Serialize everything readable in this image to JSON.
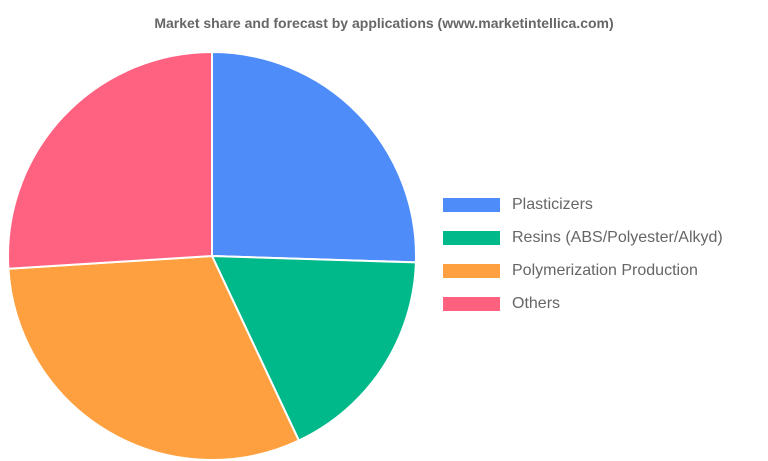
{
  "chart_data": {
    "type": "pie",
    "title": "Market share and forecast by applications (www.marketintellica.com)",
    "legend_position": "right",
    "categories": [
      "Plasticizers",
      "Resins (ABS/Polyester/Alkyd)",
      "Polymerization Production",
      "Others"
    ],
    "values": [
      25.5,
      17.5,
      31.0,
      26.0
    ],
    "colors": [
      "#4d8cf9",
      "#00b98b",
      "#fea03f",
      "#ff6181"
    ]
  }
}
